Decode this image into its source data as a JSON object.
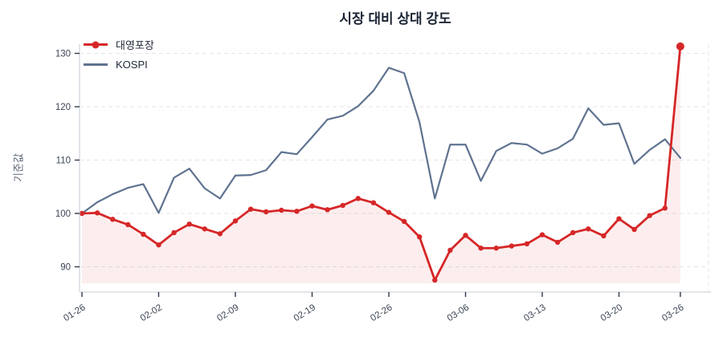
{
  "chart_data": {
    "type": "line",
    "title": "시장 대비 상대 강도",
    "ylabel": "기준값",
    "yticks": [
      90,
      100,
      110,
      120,
      130
    ],
    "ylim": [
      85.3,
      131.7
    ],
    "grid": "horizontal-dashed",
    "legend_position": "top-left",
    "fill_baseline": 86.9,
    "x_tick_labels": [
      "01-26",
      "02-02",
      "02-09",
      "02-19",
      "02-26",
      "03-06",
      "03-13",
      "03-20",
      "03-26"
    ],
    "x_tick_indices": [
      0,
      5,
      10,
      15,
      20,
      25,
      30,
      35,
      39
    ],
    "x_count": 40,
    "series": [
      {
        "name": "대영포장",
        "color": "#d62728",
        "fill_color": "rgba(214,39,40,0.08)",
        "marker": "circle",
        "values": [
          100.0,
          100.1,
          98.9,
          97.9,
          96.1,
          94.1,
          96.4,
          98.0,
          97.1,
          96.2,
          98.6,
          100.8,
          100.3,
          100.6,
          100.4,
          101.4,
          100.7,
          101.5,
          102.8,
          102.0,
          100.2,
          98.5,
          95.6,
          87.5,
          93.1,
          95.9,
          93.5,
          93.5,
          93.9,
          94.3,
          96.0,
          94.6,
          96.4,
          97.1,
          95.8,
          99.0,
          97.0,
          99.6,
          101.0,
          131.3
        ]
      },
      {
        "name": "KOSPI",
        "color": "#5f7390",
        "marker": "none",
        "values": [
          100.0,
          102.1,
          103.6,
          104.8,
          105.5,
          100.1,
          106.7,
          108.4,
          104.7,
          102.8,
          107.1,
          107.2,
          108.1,
          111.5,
          111.1,
          114.3,
          117.6,
          118.3,
          120.1,
          123.0,
          127.3,
          126.3,
          117.1,
          102.8,
          112.9,
          112.9,
          106.1,
          111.7,
          113.2,
          112.9,
          111.2,
          112.2,
          114.0,
          119.7,
          116.6,
          116.9,
          109.3,
          111.9,
          113.9,
          110.4
        ]
      }
    ]
  }
}
